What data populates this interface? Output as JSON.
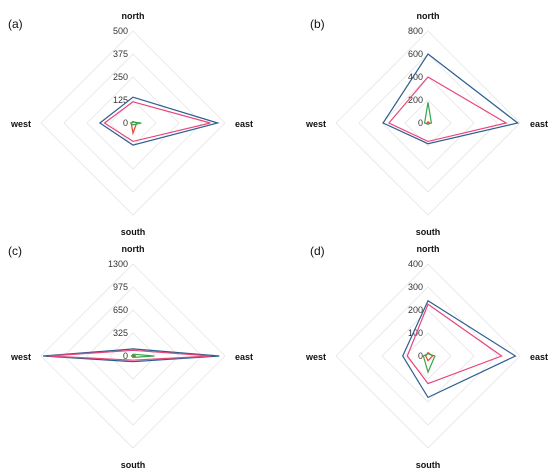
{
  "chart_data": [
    {
      "type": "radar",
      "panel_label": "(a)",
      "axes": [
        "north",
        "east",
        "south",
        "west"
      ],
      "ticks": [
        "0",
        "125",
        "250",
        "375",
        "500"
      ],
      "rmax": 500,
      "series": [
        {
          "color": "#2e5e91",
          "values": [
            140,
            460,
            120,
            180
          ]
        },
        {
          "color": "#e8467a",
          "values": [
            115,
            420,
            100,
            155
          ]
        },
        {
          "color": "#e8452a",
          "values": [
            8,
            20,
            55,
            10
          ]
        },
        {
          "color": "#3aa34a",
          "values": [
            5,
            45,
            10,
            12
          ]
        }
      ]
    },
    {
      "type": "radar",
      "panel_label": "(b)",
      "axes": [
        "north",
        "east",
        "south",
        "west"
      ],
      "ticks": [
        "0",
        "200",
        "400",
        "600",
        "800"
      ],
      "rmax": 800,
      "series": [
        {
          "color": "#2e5e91",
          "values": [
            600,
            780,
            180,
            390
          ]
        },
        {
          "color": "#e8467a",
          "values": [
            400,
            680,
            160,
            340
          ]
        },
        {
          "color": "#e8452a",
          "values": [
            10,
            15,
            10,
            10
          ]
        },
        {
          "color": "#3aa34a",
          "values": [
            180,
            30,
            10,
            30
          ]
        }
      ]
    },
    {
      "type": "radar",
      "panel_label": "(c)",
      "axes": [
        "north",
        "east",
        "south",
        "west"
      ],
      "ticks": [
        "0",
        "325",
        "650",
        "975",
        "1300"
      ],
      "rmax": 1300,
      "series": [
        {
          "color": "#2e5e91",
          "values": [
            100,
            1220,
            80,
            1270
          ]
        },
        {
          "color": "#e8467a",
          "values": [
            80,
            1100,
            60,
            1190
          ]
        },
        {
          "color": "#e8452a",
          "values": [
            10,
            40,
            10,
            10
          ]
        },
        {
          "color": "#3aa34a",
          "values": [
            25,
            300,
            20,
            20
          ]
        }
      ]
    },
    {
      "type": "radar",
      "panel_label": "(d)",
      "axes": [
        "north",
        "east",
        "south",
        "west"
      ],
      "ticks": [
        "0",
        "100",
        "200",
        "300",
        "400"
      ],
      "rmax": 400,
      "series": [
        {
          "color": "#2e5e91",
          "values": [
            240,
            380,
            180,
            110
          ]
        },
        {
          "color": "#e8467a",
          "values": [
            225,
            320,
            120,
            90
          ]
        },
        {
          "color": "#e8452a",
          "values": [
            15,
            20,
            20,
            10
          ]
        },
        {
          "color": "#3aa34a",
          "values": [
            10,
            30,
            70,
            20
          ]
        }
      ]
    }
  ]
}
